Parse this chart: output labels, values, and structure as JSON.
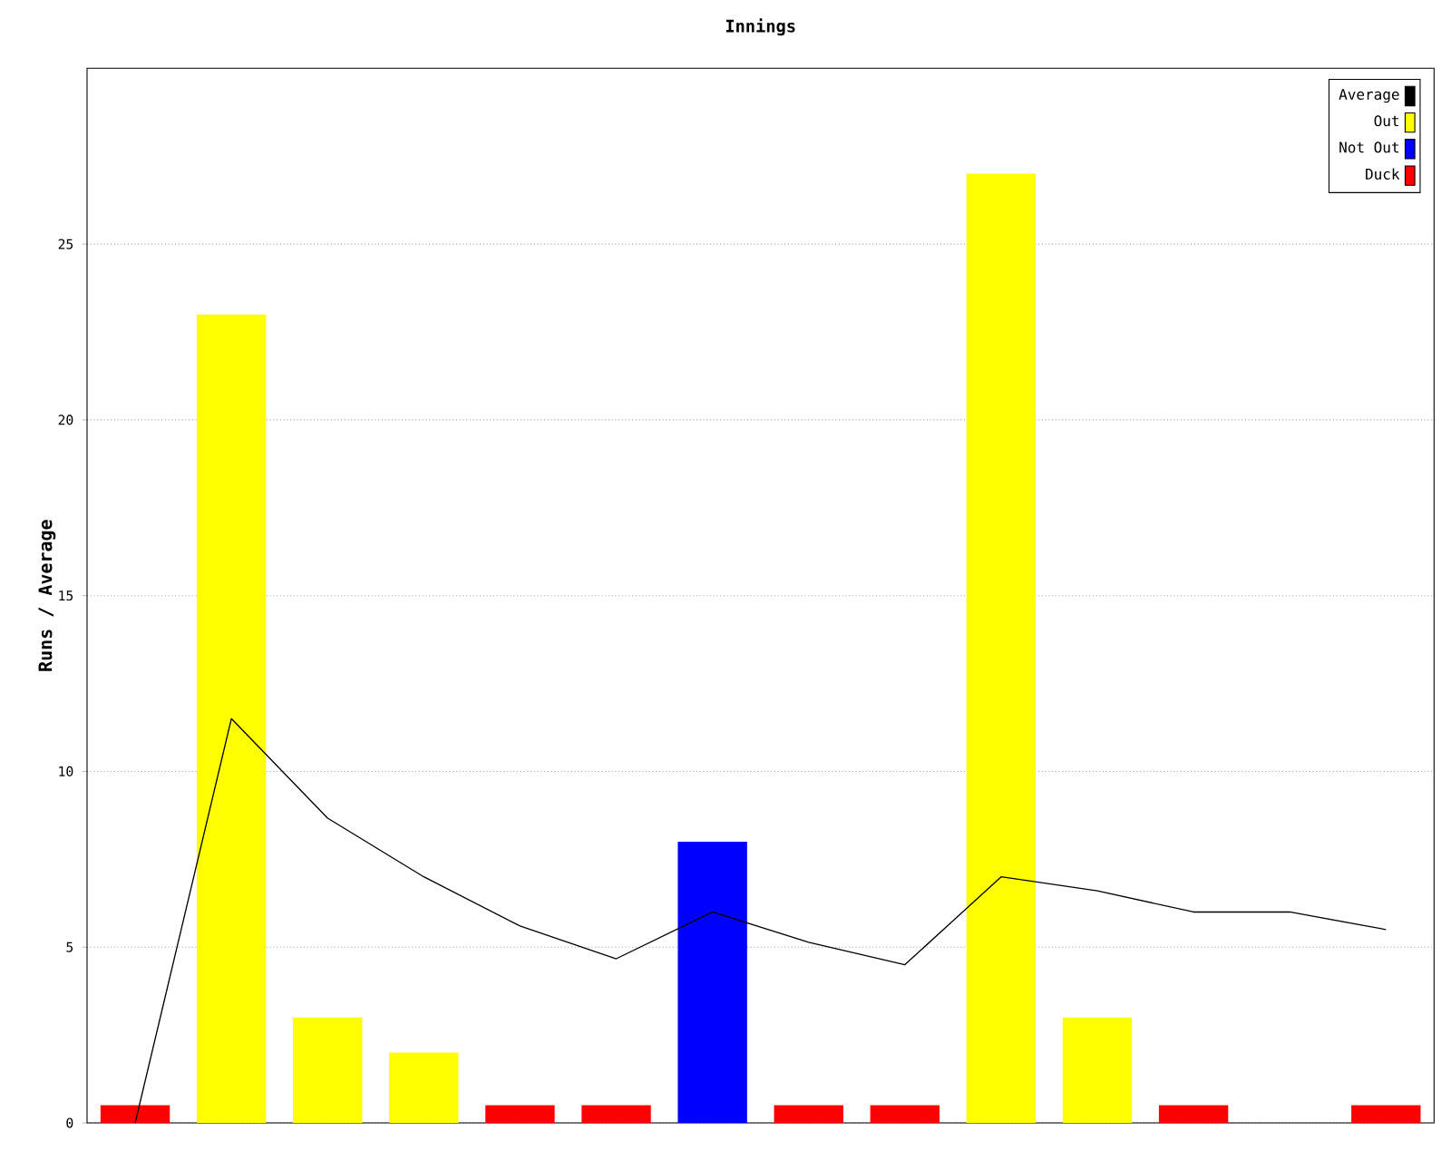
{
  "chart_data": {
    "type": "bar",
    "title": "Innings",
    "ylabel": "Runs / Average",
    "categories": [
      null,
      null,
      null,
      null,
      null,
      null,
      null,
      null,
      null,
      null,
      null,
      null,
      null,
      null
    ],
    "series": [
      {
        "name": "Average",
        "type": "line",
        "color": "#000000",
        "values": [
          0,
          11.5,
          8.67,
          7,
          5.6,
          4.67,
          6,
          5.14,
          4.5,
          7,
          6.6,
          6,
          6,
          5.5
        ]
      },
      {
        "name": "Out",
        "color": "#ffff00",
        "values": [
          null,
          23,
          3,
          2,
          null,
          null,
          null,
          null,
          null,
          27,
          3,
          null,
          null,
          null
        ]
      },
      {
        "name": "Not Out",
        "color": "#0000ff",
        "values": [
          null,
          null,
          null,
          null,
          null,
          null,
          8,
          null,
          null,
          null,
          null,
          null,
          null,
          null
        ]
      },
      {
        "name": "Duck",
        "color": "#ff0000",
        "values": [
          0.5,
          null,
          null,
          null,
          0.5,
          0.5,
          null,
          0.5,
          0.5,
          null,
          null,
          0.5,
          null,
          0.5
        ]
      }
    ],
    "ylim": [
      0,
      30
    ],
    "yticks": [
      0,
      5,
      10,
      15,
      20,
      25
    ],
    "grid": "y",
    "legend": "top right"
  }
}
